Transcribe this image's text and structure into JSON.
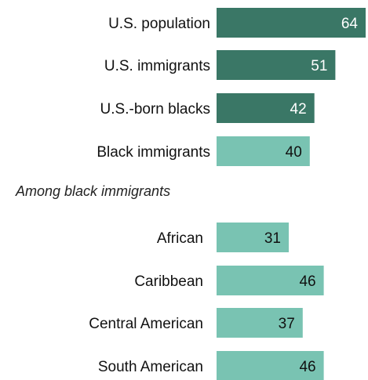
{
  "chart_data": {
    "type": "bar",
    "orientation": "horizontal",
    "group_label": "Among black immigrants",
    "categories": [
      "U.S. population",
      "U.S. immigrants",
      "U.S.-born blacks",
      "Black immigrants",
      "African",
      "Caribbean",
      "Central American",
      "South American"
    ],
    "values": [
      64,
      51,
      42,
      40,
      31,
      46,
      37,
      46
    ],
    "bar_colors": [
      "#3a7766",
      "#3a7766",
      "#3a7766",
      "#79c3b2",
      "#79c3b2",
      "#79c3b2",
      "#79c3b2",
      "#79c3b2"
    ],
    "value_label_colors": [
      "#ffffff",
      "#ffffff",
      "#ffffff",
      "#111111",
      "#111111",
      "#111111",
      "#111111",
      "#111111"
    ],
    "title": "",
    "xlabel": "",
    "ylabel": "",
    "grid": false,
    "legend": "none"
  }
}
